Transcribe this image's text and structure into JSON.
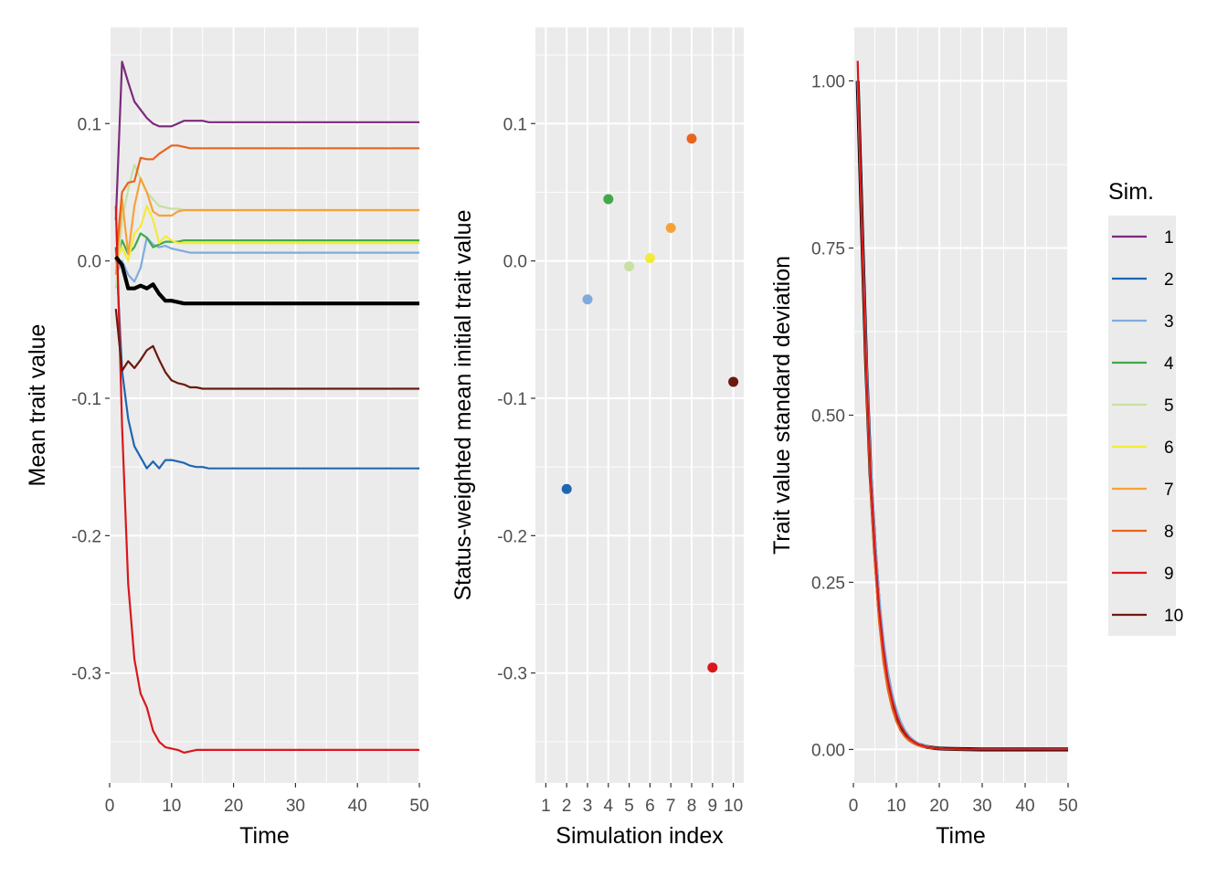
{
  "colors": {
    "panel_bg": "#ebebeb",
    "grid": "#ffffff",
    "mean": "#000000",
    "sim": [
      "#7b2a7b",
      "#1f66b0",
      "#7fabdc",
      "#41a94a",
      "#c7e0a3",
      "#f2eb3b",
      "#f6a23a",
      "#e8651f",
      "#d9171c",
      "#6b1a0e"
    ]
  },
  "chart_data": [
    {
      "type": "line",
      "xlabel": "Time",
      "ylabel": "Mean trait value",
      "xlim": [
        0,
        50
      ],
      "ylim": [
        -0.38,
        0.17
      ],
      "x_ticks": [
        0,
        10,
        20,
        30,
        40,
        50
      ],
      "y_ticks": [
        -0.3,
        -0.2,
        -0.1,
        0.0,
        0.1
      ],
      "y_tick_labels": [
        "-0.3",
        "-0.2",
        "-0.1",
        "0.0",
        "0.1"
      ],
      "x": [
        1,
        2,
        3,
        4,
        5,
        6,
        7,
        8,
        9,
        10,
        11,
        12,
        13,
        14,
        15,
        16,
        20,
        30,
        40,
        50
      ],
      "series": [
        {
          "name": "1",
          "values": [
            0.03,
            0.145,
            0.13,
            0.116,
            0.11,
            0.104,
            0.1,
            0.098,
            0.098,
            0.098,
            0.1,
            0.102,
            0.102,
            0.102,
            0.102,
            0.101,
            0.101,
            0.101,
            0.101,
            0.101
          ]
        },
        {
          "name": "2",
          "values": [
            0.01,
            -0.08,
            -0.115,
            -0.135,
            -0.143,
            -0.151,
            -0.146,
            -0.151,
            -0.145,
            -0.145,
            -0.146,
            -0.147,
            -0.149,
            -0.15,
            -0.15,
            -0.151,
            -0.151,
            -0.151,
            -0.151,
            -0.151
          ]
        },
        {
          "name": "3",
          "values": [
            -0.01,
            0.0,
            -0.01,
            -0.015,
            -0.005,
            0.017,
            0.012,
            0.01,
            0.011,
            0.009,
            0.008,
            0.007,
            0.006,
            0.006,
            0.006,
            0.006,
            0.006,
            0.006,
            0.006,
            0.006
          ]
        },
        {
          "name": "4",
          "values": [
            0.0,
            0.015,
            0.005,
            0.01,
            0.02,
            0.017,
            0.01,
            0.012,
            0.014,
            0.014,
            0.014,
            0.015,
            0.015,
            0.015,
            0.015,
            0.015,
            0.015,
            0.015,
            0.015,
            0.015
          ]
        },
        {
          "name": "5",
          "values": [
            -0.02,
            0.03,
            0.052,
            0.07,
            0.06,
            0.05,
            0.045,
            0.04,
            0.039,
            0.038,
            0.038,
            0.037,
            0.037,
            0.037,
            0.037,
            0.037,
            0.037,
            0.037,
            0.037,
            0.037
          ]
        },
        {
          "name": "6",
          "values": [
            0.0,
            0.01,
            0.0,
            0.02,
            0.025,
            0.04,
            0.03,
            0.013,
            0.018,
            0.015,
            0.013,
            0.013,
            0.013,
            0.013,
            0.013,
            0.013,
            0.013,
            0.013,
            0.013,
            0.013
          ]
        },
        {
          "name": "7",
          "values": [
            -0.01,
            0.045,
            0.005,
            0.04,
            0.06,
            0.05,
            0.036,
            0.033,
            0.033,
            0.033,
            0.036,
            0.037,
            0.037,
            0.037,
            0.037,
            0.037,
            0.037,
            0.037,
            0.037,
            0.037
          ]
        },
        {
          "name": "8",
          "values": [
            0.0,
            0.05,
            0.057,
            0.058,
            0.075,
            0.074,
            0.074,
            0.078,
            0.081,
            0.084,
            0.084,
            0.083,
            0.082,
            0.082,
            0.082,
            0.082,
            0.082,
            0.082,
            0.082,
            0.082
          ]
        },
        {
          "name": "9",
          "values": [
            0.04,
            -0.12,
            -0.235,
            -0.29,
            -0.315,
            -0.325,
            -0.342,
            -0.35,
            -0.354,
            -0.355,
            -0.356,
            -0.358,
            -0.357,
            -0.356,
            -0.356,
            -0.356,
            -0.356,
            -0.356,
            -0.356,
            -0.356
          ]
        },
        {
          "name": "10",
          "values": [
            -0.035,
            -0.08,
            -0.073,
            -0.078,
            -0.072,
            -0.065,
            -0.062,
            -0.072,
            -0.081,
            -0.087,
            -0.089,
            -0.09,
            -0.092,
            -0.092,
            -0.093,
            -0.093,
            -0.093,
            -0.093,
            -0.093,
            -0.093
          ]
        },
        {
          "name": "mean",
          "values": [
            0.003,
            -0.003,
            -0.02,
            -0.02,
            -0.018,
            -0.02,
            -0.017,
            -0.024,
            -0.029,
            -0.029,
            -0.03,
            -0.031,
            -0.031,
            -0.031,
            -0.031,
            -0.031,
            -0.031,
            -0.031,
            -0.031,
            -0.031
          ]
        }
      ]
    },
    {
      "type": "scatter",
      "xlabel": "Simulation index",
      "ylabel": "Status-weighted mean initial trait value",
      "xlim": [
        0.5,
        10.5
      ],
      "ylim": [
        -0.38,
        0.17
      ],
      "x_ticks": [
        1,
        2,
        3,
        4,
        5,
        6,
        7,
        8,
        9,
        10
      ],
      "y_ticks": [
        -0.3,
        -0.2,
        -0.1,
        0.0,
        0.1
      ],
      "y_tick_labels": [
        "-0.3",
        "-0.2",
        "-0.1",
        "0.0",
        "0.1"
      ],
      "x": [
        2,
        3,
        4,
        5,
        6,
        7,
        8,
        9,
        10
      ],
      "values": [
        -0.166,
        -0.028,
        0.045,
        -0.004,
        0.002,
        0.024,
        0.089,
        -0.296,
        -0.088
      ],
      "color_index": [
        1,
        2,
        3,
        4,
        5,
        6,
        7,
        8,
        9
      ]
    },
    {
      "type": "line",
      "xlabel": "Time",
      "ylabel": "Trait value standard deviation",
      "xlim": [
        0,
        50
      ],
      "ylim": [
        -0.05,
        1.08
      ],
      "x_ticks": [
        0,
        10,
        20,
        30,
        40,
        50
      ],
      "y_ticks": [
        0.0,
        0.25,
        0.5,
        0.75,
        1.0
      ],
      "y_tick_labels": [
        "0.00",
        "0.25",
        "0.50",
        "0.75",
        "1.00"
      ],
      "x": [
        1,
        2,
        3,
        4,
        5,
        6,
        7,
        8,
        9,
        10,
        11,
        12,
        13,
        14,
        15,
        16,
        17,
        18,
        19,
        20,
        22,
        25,
        30,
        40,
        50
      ],
      "series": [
        {
          "name": "mean",
          "values": [
            1.0,
            0.78,
            0.57,
            0.41,
            0.3,
            0.21,
            0.15,
            0.105,
            0.075,
            0.052,
            0.036,
            0.025,
            0.017,
            0.012,
            0.008,
            0.006,
            0.004,
            0.003,
            0.002,
            0.0015,
            0.001,
            0.0005,
            0.0,
            0.0,
            0.0
          ]
        },
        {
          "name": "8",
          "values": [
            1.0,
            0.77,
            0.55,
            0.39,
            0.28,
            0.19,
            0.13,
            0.09,
            0.062,
            0.042,
            0.028,
            0.019,
            0.013,
            0.009,
            0.006,
            0.004,
            0.003,
            0.002,
            0.0015,
            0.001,
            0.0005,
            0.0,
            0.0,
            0.0,
            0.0
          ]
        },
        {
          "name": "3",
          "values": [
            1.0,
            0.79,
            0.59,
            0.43,
            0.32,
            0.23,
            0.165,
            0.118,
            0.085,
            0.06,
            0.042,
            0.029,
            0.02,
            0.014,
            0.01,
            0.007,
            0.005,
            0.0035,
            0.0025,
            0.0018,
            0.001,
            0.0005,
            0.0,
            0.0,
            0.0
          ]
        },
        {
          "name": "9",
          "values": [
            1.03,
            0.78,
            0.57,
            0.41,
            0.3,
            0.21,
            0.15,
            0.105,
            0.075,
            0.052,
            0.036,
            0.025,
            0.017,
            0.012,
            0.008,
            0.006,
            0.004,
            0.003,
            0.002,
            0.0015,
            0.001,
            0.0005,
            0.0,
            0.0,
            0.0
          ]
        }
      ]
    }
  ],
  "legend": {
    "title": "Sim.",
    "items": [
      "1",
      "2",
      "3",
      "4",
      "5",
      "6",
      "7",
      "8",
      "9",
      "10"
    ]
  }
}
